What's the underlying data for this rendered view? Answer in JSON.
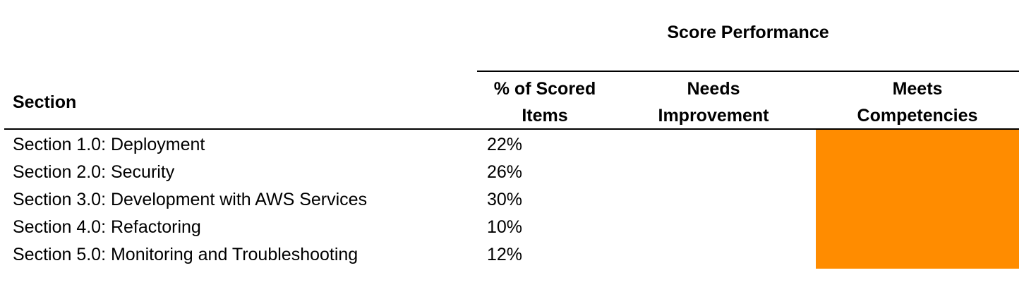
{
  "table": {
    "group_title": "Score Performance",
    "headers": {
      "section": "Section",
      "pct_line1": "% of Scored",
      "pct_line2": "Items",
      "needs_line1": "Needs",
      "needs_line2": "Improvement",
      "meets_line1": "Meets",
      "meets_line2": "Competencies"
    },
    "rows": [
      {
        "name": "Section 1.0: Deployment",
        "pct": "22%"
      },
      {
        "name": "Section 2.0: Security",
        "pct": "26%"
      },
      {
        "name": "Section 3.0: Development with AWS Services",
        "pct": "30%"
      },
      {
        "name": "Section 4.0: Refactoring",
        "pct": "10%"
      },
      {
        "name": "Section 5.0: Monitoring and Troubleshooting",
        "pct": "12%"
      }
    ],
    "performance": "Meets Competencies",
    "colors": {
      "performance_fill": "#FF8C00",
      "rules": "#000000"
    }
  }
}
